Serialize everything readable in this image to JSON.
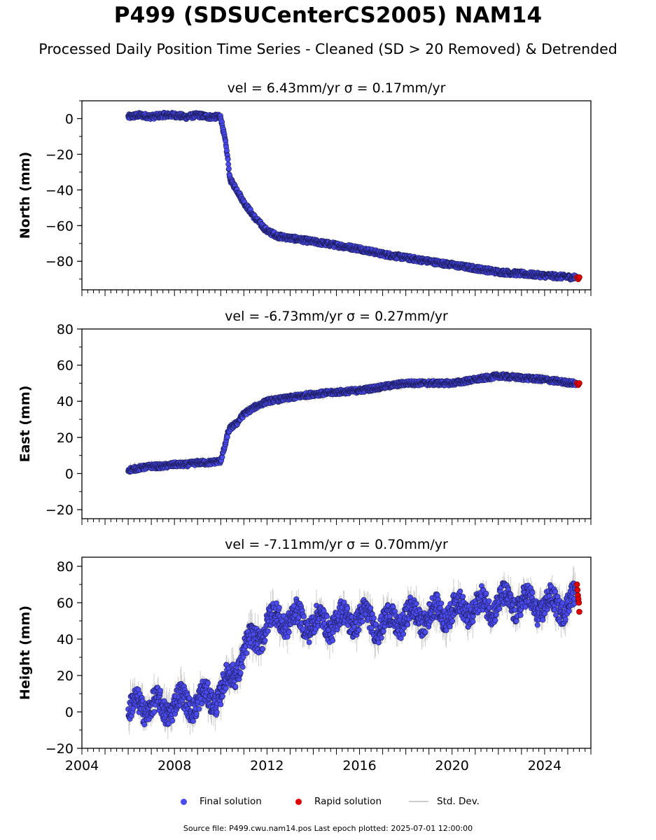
{
  "header": {
    "title": "P499 (SDSUCenterCS2005) NAM14",
    "subtitle": "Processed Daily Position Time Series - Cleaned (SD > 20 Removed) & Detrended"
  },
  "legend": {
    "final": "Final solution",
    "rapid": "Rapid solution",
    "stddev": "Std. Dev."
  },
  "footer": "Source file: P499.cwu.nam14.pos  Last epoch plotted: 2025-07-01 12:00:00",
  "colors": {
    "final": "#4b4bf0",
    "rapid": "#e00000",
    "stddev": "#cccccc"
  },
  "chart_data": [
    {
      "type": "scatter",
      "title": "vel = 6.43mm/yr   σ = 0.17mm/yr",
      "ylabel": "North (mm)",
      "xlim": [
        2004,
        2026
      ],
      "ylim": [
        -96,
        10
      ],
      "yticks": [
        0,
        -20,
        -40,
        -60,
        -80
      ],
      "xticks": [],
      "series": [
        {
          "name": "Final solution",
          "x": [
            2006.0,
            2006.5,
            2007.0,
            2007.5,
            2008.0,
            2008.5,
            2009.0,
            2009.5,
            2010.0,
            2010.2,
            2010.3,
            2010.4,
            2010.5,
            2010.7,
            2011.0,
            2011.5,
            2012.0,
            2012.5,
            2013.0,
            2014.0,
            2015.0,
            2016.0,
            2017.0,
            2018.0,
            2019.0,
            2020.0,
            2021.0,
            2022.0,
            2023.0,
            2024.0,
            2025.2
          ],
          "y": [
            1,
            2,
            1,
            2,
            2,
            1,
            2,
            1,
            1,
            -13,
            -22,
            -34,
            -36,
            -40,
            -47,
            -56,
            -63,
            -66,
            -67,
            -69,
            -71,
            -73,
            -76,
            -78,
            -80,
            -82,
            -84,
            -86,
            -87,
            -88,
            -89
          ]
        },
        {
          "name": "Rapid solution",
          "x": [
            2025.4,
            2025.45,
            2025.5
          ],
          "y": [
            -89,
            -90,
            -89
          ]
        }
      ]
    },
    {
      "type": "scatter",
      "title": "vel = -6.73mm/yr   σ = 0.27mm/yr",
      "ylabel": "East (mm)",
      "xlim": [
        2004,
        2026
      ],
      "ylim": [
        -25,
        80
      ],
      "yticks": [
        -20,
        0,
        20,
        40,
        60,
        80
      ],
      "xticks": [],
      "series": [
        {
          "name": "Final solution",
          "x": [
            2006.0,
            2006.5,
            2007.0,
            2007.5,
            2008.0,
            2008.5,
            2009.0,
            2009.5,
            2010.0,
            2010.2,
            2010.3,
            2010.4,
            2010.5,
            2010.7,
            2011.0,
            2011.5,
            2012.0,
            2012.5,
            2013.0,
            2014.0,
            2015.0,
            2016.0,
            2017.0,
            2018.0,
            2019.0,
            2020.0,
            2021.0,
            2022.0,
            2023.0,
            2024.0,
            2025.2
          ],
          "y": [
            2,
            3,
            4,
            4,
            5,
            5,
            6,
            6,
            7,
            16,
            22,
            25,
            26,
            28,
            33,
            37,
            40,
            41,
            42,
            44,
            45,
            46,
            48,
            50,
            50,
            50,
            52,
            54,
            53,
            52,
            50
          ]
        },
        {
          "name": "Rapid solution",
          "x": [
            2025.4,
            2025.45,
            2025.5
          ],
          "y": [
            50,
            49,
            50
          ]
        }
      ]
    },
    {
      "type": "scatter",
      "title": "vel = -7.11mm/yr   σ = 0.70mm/yr",
      "ylabel": "Height (mm)",
      "xlim": [
        2004,
        2026
      ],
      "ylim": [
        -20,
        85
      ],
      "yticks": [
        -20,
        0,
        20,
        40,
        60,
        80
      ],
      "xticks": [
        2004,
        2008,
        2012,
        2016,
        2020,
        2024
      ],
      "series": [
        {
          "name": "Final solution",
          "x": [
            2006.0,
            2006.5,
            2007.0,
            2007.5,
            2008.0,
            2008.5,
            2009.0,
            2009.5,
            2010.0,
            2010.5,
            2011.0,
            2011.5,
            2012.0,
            2012.5,
            2013.0,
            2013.5,
            2014.0,
            2015.0,
            2016.0,
            2017.0,
            2018.0,
            2019.0,
            2020.0,
            2021.0,
            2022.0,
            2023.0,
            2024.0,
            2025.2
          ],
          "y": [
            -2,
            5,
            3,
            2,
            4,
            6,
            5,
            8,
            10,
            20,
            33,
            40,
            48,
            52,
            50,
            51,
            48,
            50,
            52,
            48,
            52,
            53,
            56,
            57,
            60,
            60,
            58,
            60
          ]
        },
        {
          "name": "Rapid solution",
          "x": [
            2025.4,
            2025.42,
            2025.44,
            2025.46,
            2025.48,
            2025.5
          ],
          "y": [
            70,
            67,
            64,
            62,
            60,
            55
          ]
        }
      ]
    }
  ]
}
